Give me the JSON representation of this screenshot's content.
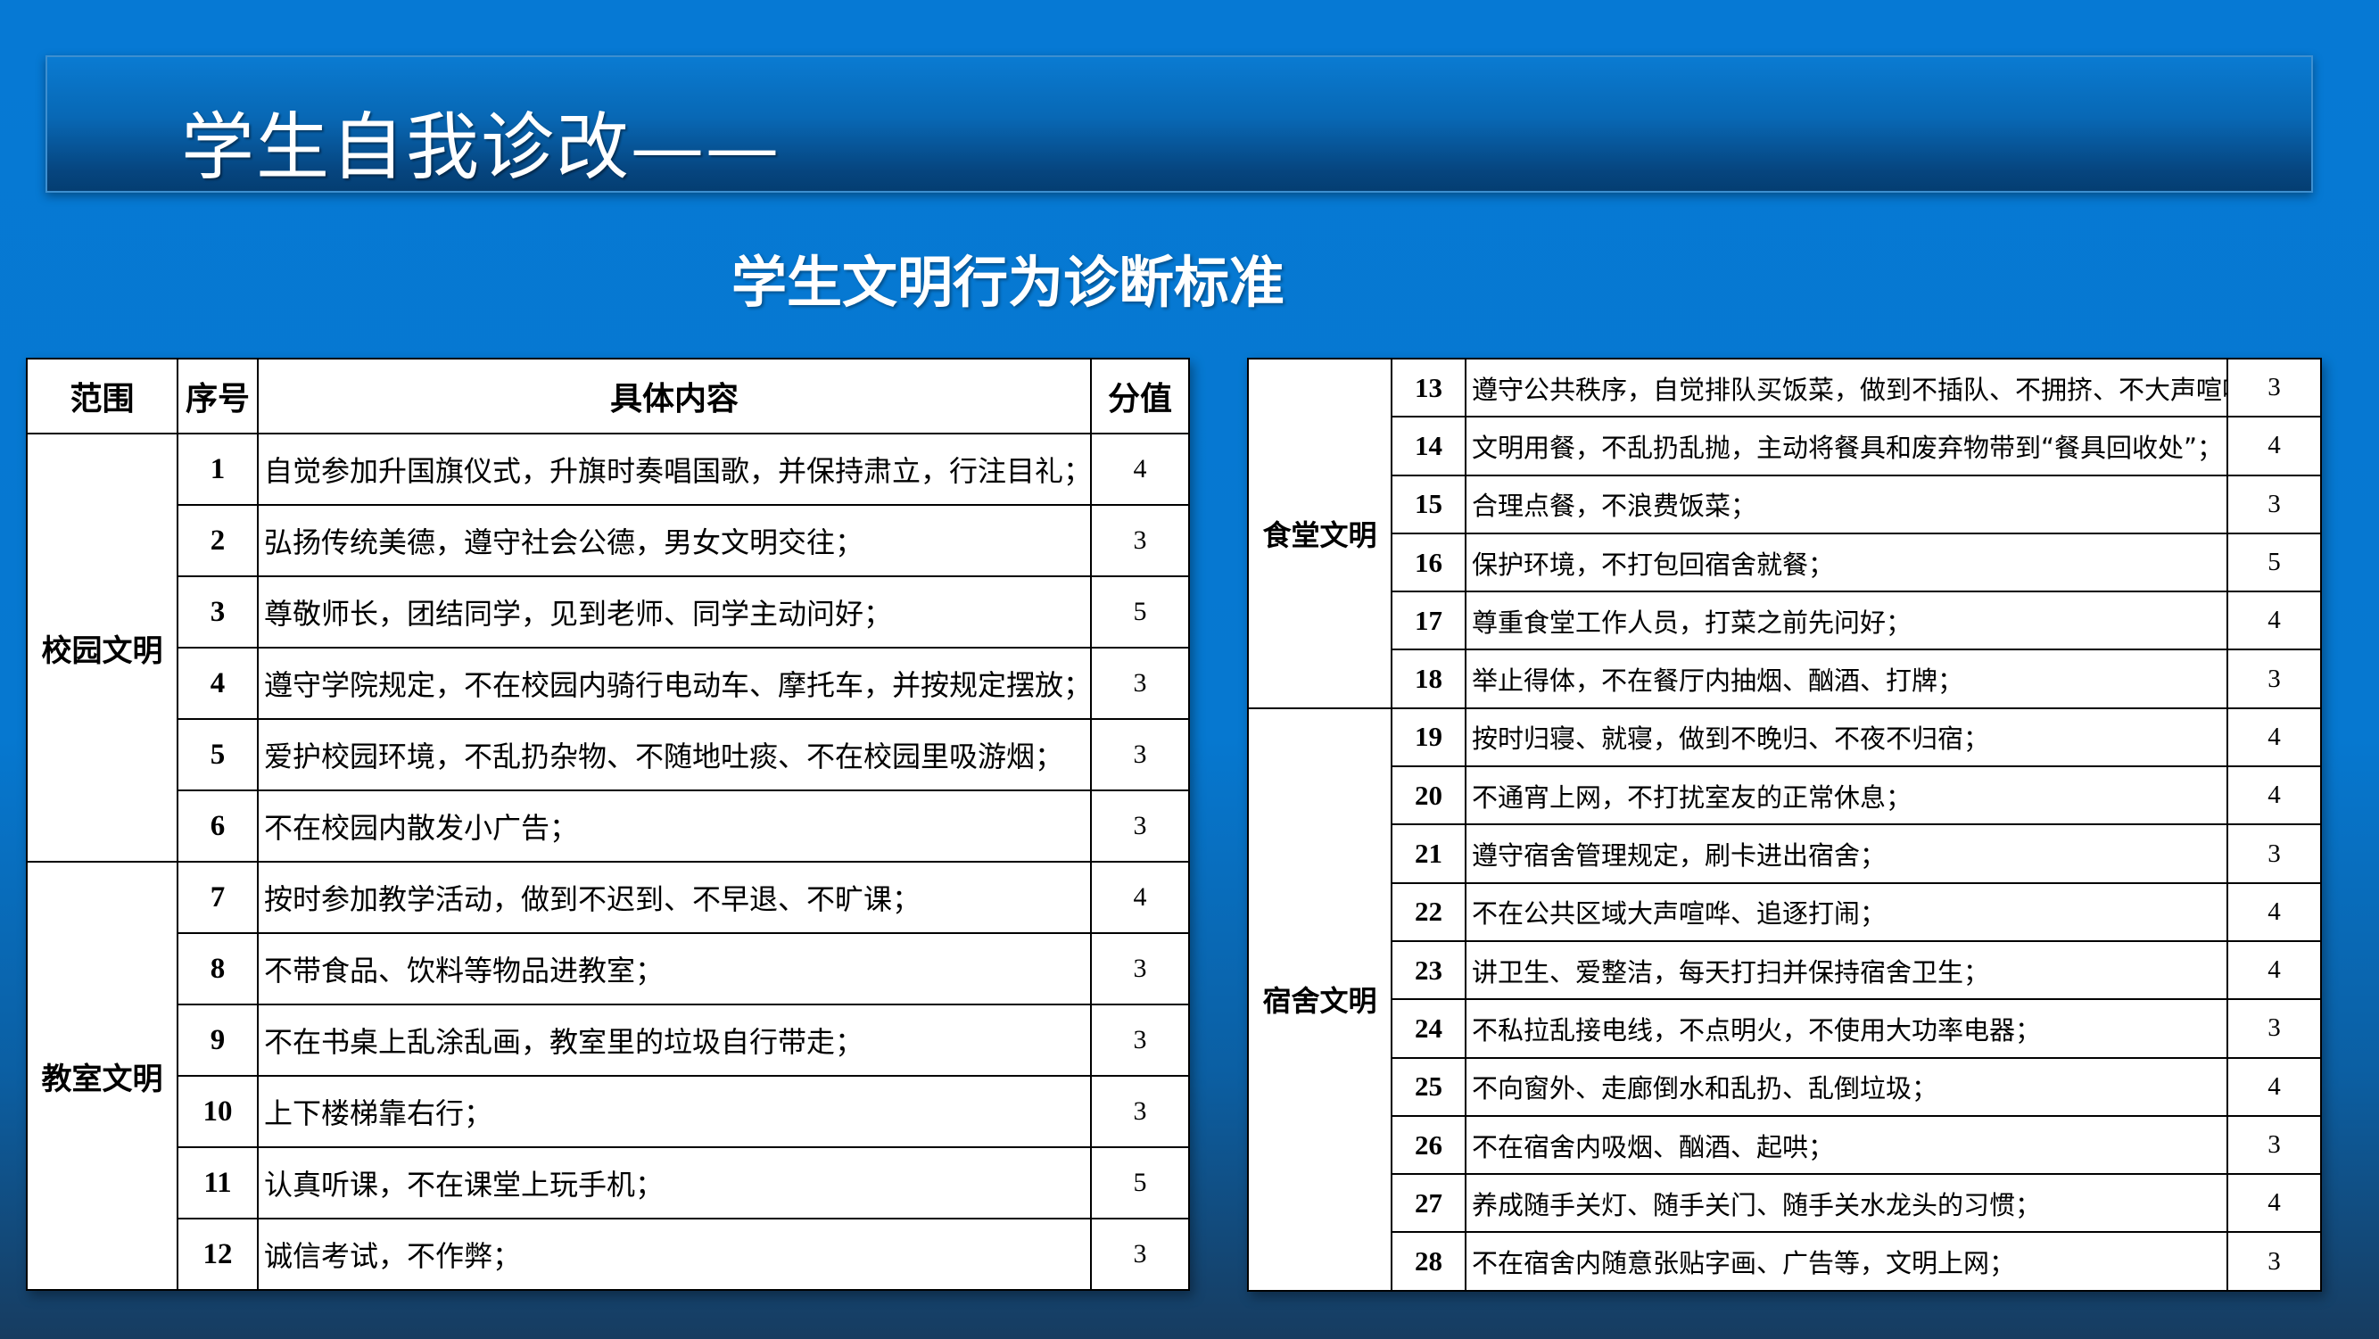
{
  "title": "学生自我诊改——",
  "subtitle": "学生文明行为诊断标准",
  "table_headers": {
    "scope": "范围",
    "num": "序号",
    "content": "具体内容",
    "score": "分值"
  },
  "groups": [
    {
      "scope": "校园文明",
      "rows": [
        {
          "num": "1",
          "content": "自觉参加升国旗仪式，升旗时奏唱国歌，并保持肃立，行注目礼；",
          "score": "4"
        },
        {
          "num": "2",
          "content": "弘扬传统美德，遵守社会公德，男女文明交往；",
          "score": "3"
        },
        {
          "num": "3",
          "content": "尊敬师长，团结同学，见到老师、同学主动问好；",
          "score": "5"
        },
        {
          "num": "4",
          "content": "遵守学院规定，不在校园内骑行电动车、摩托车，并按规定摆放；",
          "score": "3"
        },
        {
          "num": "5",
          "content": "爱护校园环境，不乱扔杂物、不随地吐痰、不在校园里吸游烟；",
          "score": "3"
        },
        {
          "num": "6",
          "content": "不在校园内散发小广告；",
          "score": "3"
        }
      ]
    },
    {
      "scope": "教室文明",
      "rows": [
        {
          "num": "7",
          "content": "按时参加教学活动，做到不迟到、不早退、不旷课；",
          "score": "4"
        },
        {
          "num": "8",
          "content": "不带食品、饮料等物品进教室；",
          "score": "3"
        },
        {
          "num": "9",
          "content": "不在书桌上乱涂乱画，教室里的垃圾自行带走；",
          "score": "3"
        },
        {
          "num": "10",
          "content": "上下楼梯靠右行；",
          "score": "3"
        },
        {
          "num": "11",
          "content": "认真听课，不在课堂上玩手机；",
          "score": "5"
        },
        {
          "num": "12",
          "content": "诚信考试，不作弊；",
          "score": "3"
        }
      ]
    },
    {
      "scope": "食堂文明",
      "rows": [
        {
          "num": "13",
          "content": "遵守公共秩序，自觉排队买饭菜，做到不插队、不拥挤、不大声喧哗；",
          "score": "3"
        },
        {
          "num": "14",
          "content": "文明用餐，不乱扔乱抛，主动将餐具和废弃物带到“餐具回收处”；",
          "score": "4"
        },
        {
          "num": "15",
          "content": "合理点餐，不浪费饭菜；",
          "score": "3"
        },
        {
          "num": "16",
          "content": "保护环境，不打包回宿舍就餐；",
          "score": "5"
        },
        {
          "num": "17",
          "content": "尊重食堂工作人员，打菜之前先问好；",
          "score": "4"
        },
        {
          "num": "18",
          "content": "举止得体，不在餐厅内抽烟、酗酒、打牌；",
          "score": "3"
        }
      ]
    },
    {
      "scope": "宿舍文明",
      "rows": [
        {
          "num": "19",
          "content": "按时归寝、就寝，做到不晚归、不夜不归宿；",
          "score": "4"
        },
        {
          "num": "20",
          "content": "不通宵上网，不打扰室友的正常休息；",
          "score": "4"
        },
        {
          "num": "21",
          "content": "遵守宿舍管理规定，刷卡进出宿舍；",
          "score": "3"
        },
        {
          "num": "22",
          "content": "不在公共区域大声喧哗、追逐打闹；",
          "score": "4"
        },
        {
          "num": "23",
          "content": "讲卫生、爱整洁，每天打扫并保持宿舍卫生；",
          "score": "4"
        },
        {
          "num": "24",
          "content": "不私拉乱接电线，不点明火，不使用大功率电器；",
          "score": "3"
        },
        {
          "num": "25",
          "content": "不向窗外、走廊倒水和乱扔、乱倒垃圾；",
          "score": "4"
        },
        {
          "num": "26",
          "content": "不在宿舍内吸烟、酗酒、起哄；",
          "score": "3"
        },
        {
          "num": "27",
          "content": "养成随手关灯、随手关门、随手关水龙头的习惯；",
          "score": "4"
        },
        {
          "num": "28",
          "content": "不在宿舍内随意张贴字画、广告等，文明上网；",
          "score": "3"
        }
      ]
    }
  ]
}
